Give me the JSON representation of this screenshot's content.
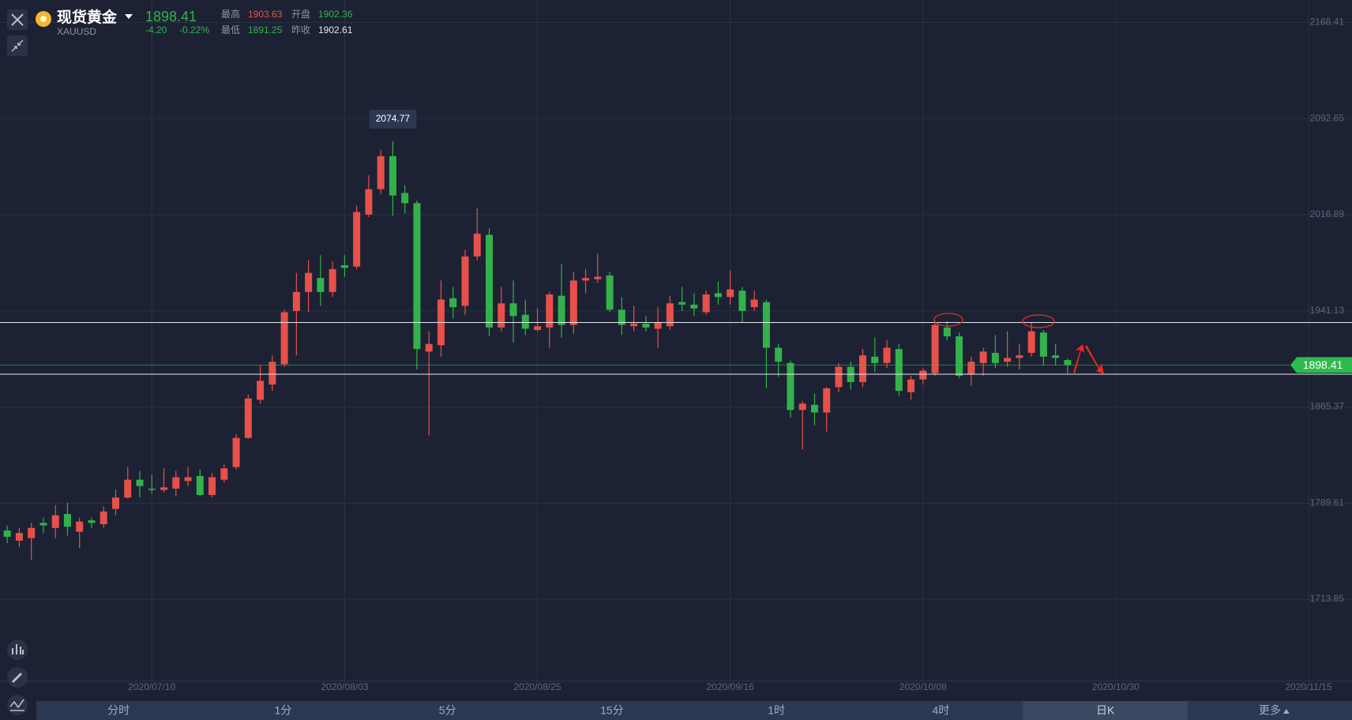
{
  "header": {
    "name": "现货黄金",
    "symbol": "XAUUSD",
    "price": "1898.41",
    "change": "-4.20",
    "change_pct": "-0.22%",
    "high_label": "最高",
    "high": "1903.63",
    "open_label": "开盘",
    "open": "1902.36",
    "low_label": "最低",
    "low": "1891.25",
    "prev_label": "昨收",
    "prev_close": "1902.61"
  },
  "tabs": [
    "分时",
    "1分",
    "5分",
    "15分",
    "1时",
    "4时",
    "日K",
    "更多"
  ],
  "selected_tab": 6,
  "chart_data": {
    "type": "candlestick",
    "up_color": "#e8504a",
    "down_color": "#33b24b",
    "open": [
      1768,
      1760,
      1762,
      1774,
      1770,
      1781,
      1767,
      1776,
      1773,
      1785,
      1794,
      1808,
      1801,
      1800,
      1801,
      1807,
      1811,
      1796,
      1808,
      1818,
      1841,
      1871,
      1883,
      1899,
      1941,
      1956,
      1967,
      1956,
      1977,
      1976,
      2017,
      2037,
      2063,
      2034,
      2026,
      1909,
      1914,
      1951,
      1945,
      1984,
      2001,
      1928,
      1947,
      1938,
      1926,
      1928,
      1953,
      1930,
      1965,
      1966,
      1969,
      1942,
      1929,
      1931,
      1927,
      1929,
      1948,
      1946,
      1940,
      1955,
      1952,
      1957,
      1944,
      1948,
      1912,
      1900,
      1863,
      1867,
      1861,
      1881,
      1897,
      1885,
      1905,
      1900,
      1911,
      1877,
      1887,
      1892,
      1928,
      1921,
      1891,
      1900,
      1908,
      1901,
      1904,
      1908,
      1924,
      1906,
      1902.36
    ],
    "high": [
      1772,
      1770,
      1774,
      1778,
      1788,
      1790,
      1778,
      1778,
      1787,
      1800,
      1818,
      1815,
      1812,
      1817,
      1815,
      1818,
      1816,
      1813,
      1820,
      1844,
      1875,
      1898,
      1906,
      1942,
      1971,
      1981,
      1985,
      1980,
      1985,
      2024,
      2048,
      2068,
      2074.77,
      2040,
      2028,
      1925,
      1965,
      1960,
      1989,
      2022,
      2006,
      1960,
      1965,
      1950,
      1943,
      1956,
      1978,
      1972,
      1974,
      1986,
      1972,
      1952,
      1945,
      1937,
      1944,
      1953,
      1960,
      1955,
      1957,
      1964,
      1973,
      1960,
      1957,
      1950,
      1915,
      1902,
      1870,
      1876,
      1881,
      1900,
      1901,
      1911,
      1920,
      1918,
      1915,
      1890,
      1896,
      1933,
      1933,
      1924,
      1905,
      1912,
      1922,
      1925,
      1915,
      1932,
      1926,
      1915,
      1903.63
    ],
    "low": [
      1758,
      1755,
      1745,
      1766,
      1762,
      1764,
      1754,
      1770,
      1770,
      1780,
      1793,
      1794,
      1797,
      1798,
      1795,
      1803,
      1795,
      1794,
      1806,
      1816,
      1840,
      1868,
      1878,
      1897,
      1906,
      1940,
      1945,
      1952,
      1968,
      1974,
      2015,
      2033,
      2016,
      2018,
      1895,
      1843,
      1905,
      1935,
      1938,
      1981,
      1921,
      1925,
      1916,
      1922,
      1925,
      1912,
      1920,
      1923,
      1955,
      1963,
      1940,
      1922,
      1925,
      1925,
      1912,
      1926,
      1941,
      1937,
      1938,
      1946,
      1946,
      1932,
      1941,
      1880,
      1889,
      1857,
      1832,
      1851,
      1846,
      1877,
      1879,
      1881,
      1893,
      1896,
      1874,
      1871,
      1883,
      1890,
      1918,
      1888,
      1882,
      1890,
      1896,
      1897,
      1895,
      1905,
      1898,
      1898,
      1891.25
    ],
    "close": [
      1763,
      1766,
      1770,
      1772,
      1780,
      1771,
      1775,
      1774,
      1783,
      1794,
      1808,
      1803,
      1800,
      1802,
      1810,
      1810,
      1796,
      1810,
      1817,
      1841,
      1872,
      1886,
      1901,
      1940,
      1956,
      1971,
      1956,
      1974,
      1975,
      2019,
      2037,
      2063,
      2032,
      2026,
      1911,
      1915,
      1950,
      1944,
      1984,
      2002,
      1928,
      1947,
      1937,
      1927,
      1929,
      1954,
      1930,
      1965,
      1967,
      1968,
      1942,
      1930,
      1931,
      1928,
      1932,
      1947,
      1946,
      1943,
      1954,
      1952,
      1958,
      1941,
      1950,
      1912,
      1901,
      1863,
      1868,
      1861,
      1880,
      1897,
      1885,
      1906,
      1900,
      1912,
      1878,
      1887,
      1894,
      1930,
      1921,
      1890,
      1901,
      1909,
      1900,
      1904,
      1906,
      1925,
      1905,
      1904,
      1898.41
    ],
    "xlim": [
      -0.6,
      111.6
    ],
    "xticks": [
      {
        "value": 12,
        "label": "2020/07/10"
      },
      {
        "value": 28,
        "label": "2020/08/03"
      },
      {
        "value": 44,
        "label": "2020/08/25"
      },
      {
        "value": 60,
        "label": "2020/09/16"
      },
      {
        "value": 76,
        "label": "2020/10/08"
      },
      {
        "value": 92,
        "label": "2020/10/30"
      },
      {
        "value": 108,
        "label": "2020/11/15"
      }
    ],
    "ylim": [
      1649.33,
      2186.08
    ],
    "yticks": [
      1713.85,
      1789.61,
      1865.37,
      1941.13,
      2016.89,
      2092.65,
      2168.41
    ],
    "grid": true,
    "hlines": [
      1931.9,
      1891.2
    ],
    "high_marker": 32,
    "last_price_color": "#2dbb4d"
  }
}
